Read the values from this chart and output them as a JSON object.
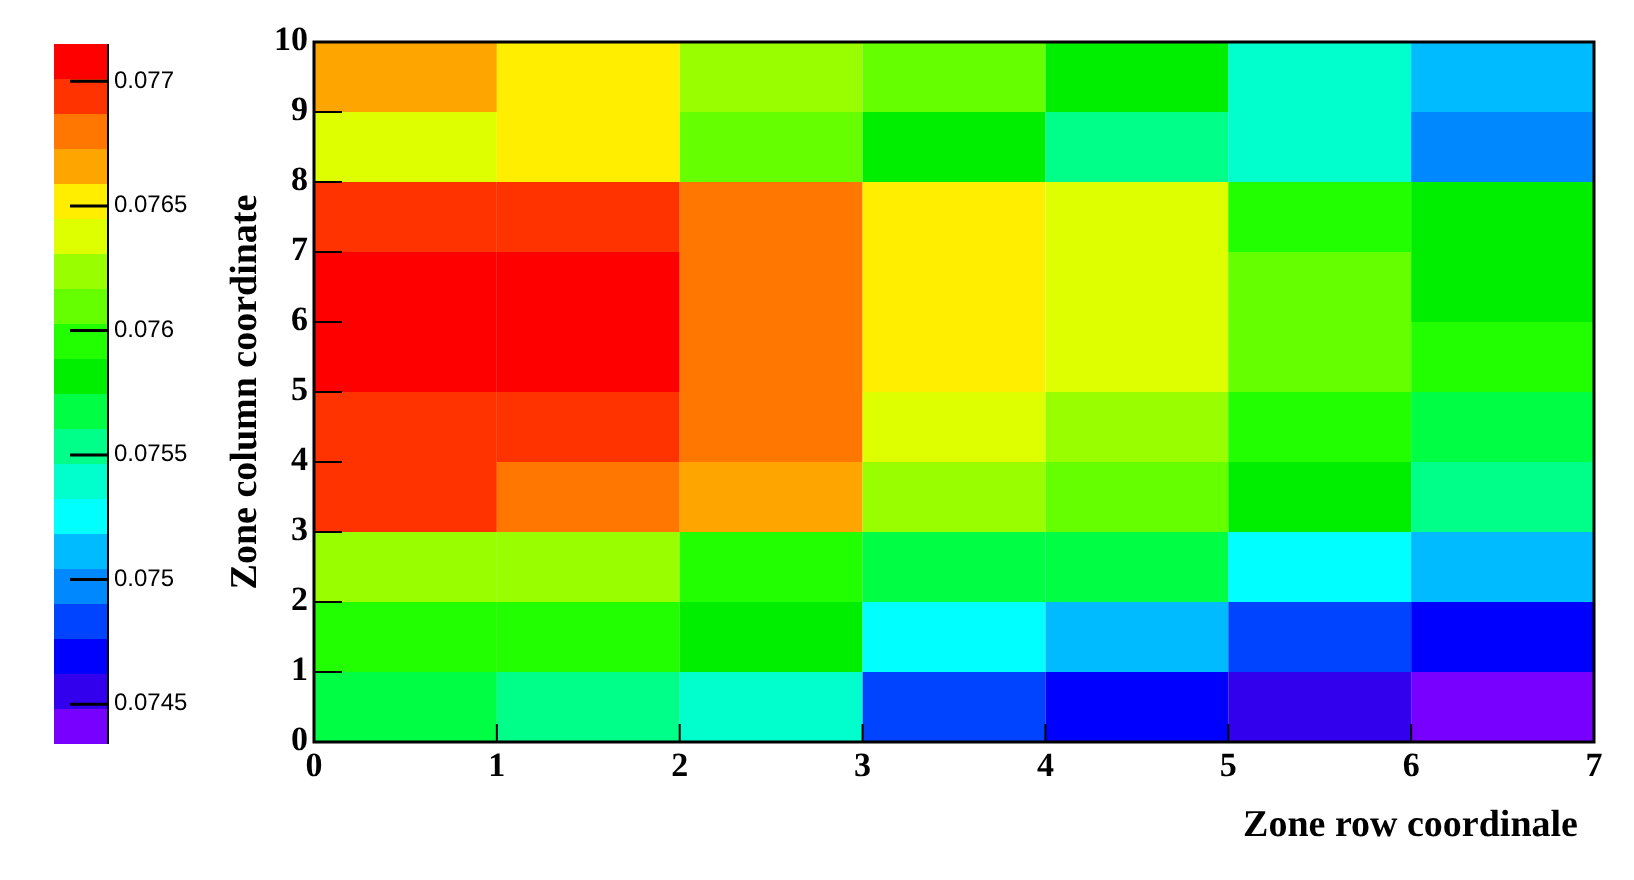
{
  "chart_data": {
    "type": "heatmap",
    "xlabel": "Zone row coordinale",
    "ylabel": "Zone column coordinate",
    "xlim": [
      0,
      7
    ],
    "xticks": [
      0,
      1,
      2,
      3,
      4,
      5,
      6,
      7
    ],
    "ylim": [
      0,
      10
    ],
    "yticks": [
      0,
      1,
      2,
      3,
      4,
      5,
      6,
      7,
      8,
      9,
      10
    ],
    "clim": [
      0.07434,
      0.07715
    ],
    "cticks": [
      0.0745,
      0.075,
      0.0755,
      0.076,
      0.0765,
      0.077
    ],
    "colors": [
      "#7700ff",
      "#3300ee",
      "#0000ff",
      "#0044ff",
      "#0088ff",
      "#00bbff",
      "#00ffff",
      "#00ffcc",
      "#00ff88",
      "#00ff44",
      "#00ee00",
      "#22ff00",
      "#66ff00",
      "#99ff00",
      "#ddff00",
      "#ffee00",
      "#ffa500",
      "#ff7700",
      "#ff3300",
      "#ff0000"
    ],
    "cells": [
      [
        0.07665,
        0.07651,
        0.07623,
        0.07609,
        0.07581,
        0.07539,
        0.07511
      ],
      [
        0.07637,
        0.07651,
        0.07609,
        0.07581,
        0.07553,
        0.07539,
        0.07497
      ],
      [
        0.07693,
        0.07693,
        0.07679,
        0.07651,
        0.07637,
        0.07595,
        0.07581
      ],
      [
        0.07707,
        0.07707,
        0.07679,
        0.07651,
        0.07637,
        0.07609,
        0.07581
      ],
      [
        0.07707,
        0.07707,
        0.07679,
        0.07651,
        0.07637,
        0.07609,
        0.07595
      ],
      [
        0.07693,
        0.07693,
        0.07679,
        0.07637,
        0.07623,
        0.07595,
        0.07567
      ],
      [
        0.07693,
        0.07679,
        0.07665,
        0.07623,
        0.07609,
        0.07581,
        0.07553
      ],
      [
        0.07623,
        0.07623,
        0.07595,
        0.07567,
        0.07567,
        0.07525,
        0.07511
      ],
      [
        0.07595,
        0.07595,
        0.07581,
        0.07525,
        0.07511,
        0.07483,
        0.07469
      ],
      [
        0.07567,
        0.07553,
        0.07539,
        0.07483,
        0.07469,
        0.07455,
        0.07441
      ]
    ]
  }
}
